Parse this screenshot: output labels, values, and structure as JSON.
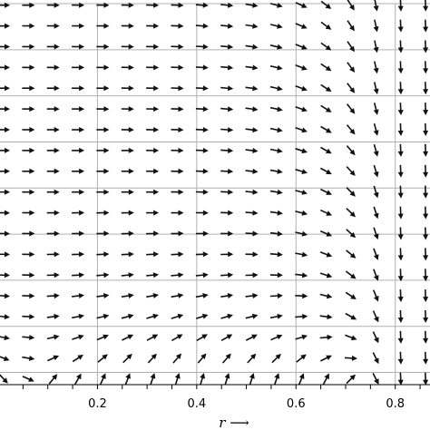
{
  "chart_data": {
    "type": "quiver",
    "title": "",
    "xlabel": "r ⟶",
    "ylabel": "",
    "xlim": [
      0.0,
      0.87
    ],
    "ylim": [
      0.0,
      1.0
    ],
    "grid": true,
    "x_ticks": [
      {
        "value": 0.2,
        "label": "0.2"
      },
      {
        "value": 0.4,
        "label": "0.4"
      },
      {
        "value": 0.6,
        "label": "0.6"
      },
      {
        "value": 0.8,
        "label": "0.8"
      }
    ],
    "field": {
      "nx": 18,
      "ny": 19,
      "x_start": 0.0,
      "x_step": 0.05,
      "y_start": 0.015,
      "y_step": 0.0545,
      "wall_x": 0.77,
      "floor_y": 0.12,
      "note_model": "vortex-like flow: rightward in bulk, bending downward near right wall, upward near bottom"
    }
  }
}
